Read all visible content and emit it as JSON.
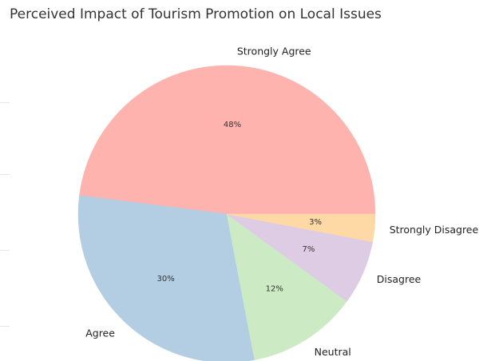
{
  "chart_data": {
    "type": "pie",
    "title": "Perceived Impact of Tourism Promotion on Local Issues",
    "categories": [
      "Strongly Agree",
      "Agree",
      "Neutral",
      "Disagree",
      "Strongly Disagree"
    ],
    "values": [
      48,
      30,
      12,
      7,
      3
    ],
    "value_labels": [
      "48%",
      "30%",
      "12%",
      "7%",
      "3%"
    ],
    "colors": [
      "#ffb3ae",
      "#b3cde3",
      "#ccebc5",
      "#decbe4",
      "#fed9a6"
    ],
    "start_angle_deg": 0,
    "direction": "counterclockwise",
    "legend": "none"
  }
}
